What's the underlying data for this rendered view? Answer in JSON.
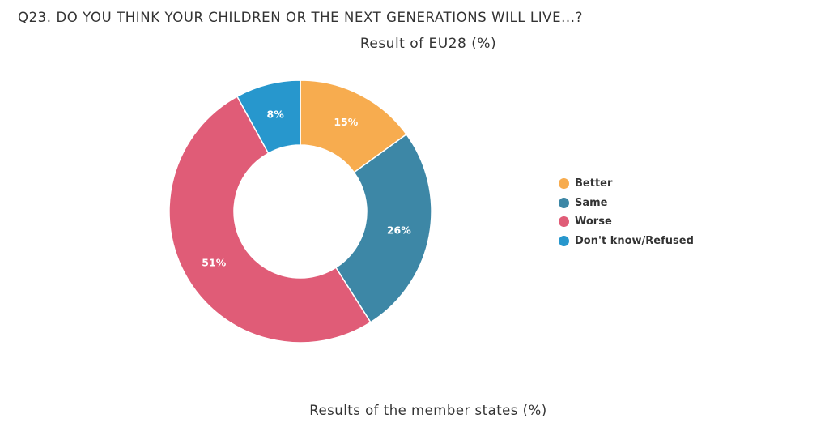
{
  "header": {
    "question": "Q23. DO YOU THINK YOUR CHILDREN OR THE NEXT GENERATIONS WILL LIVE...?"
  },
  "section": {
    "title": "Results of the member states (%)"
  },
  "chart_data": {
    "type": "pie",
    "donut": true,
    "title": "Result of EU28 (%)",
    "categories": [
      "Better",
      "Same",
      "Worse",
      "Don't know/Refused"
    ],
    "values": [
      15,
      26,
      51,
      8
    ],
    "value_labels": [
      "15%",
      "26%",
      "51%",
      "8%"
    ],
    "colors": [
      "#F7AC4F",
      "#3D87A6",
      "#E05C77",
      "#2797CD"
    ],
    "legend_position": "right"
  }
}
